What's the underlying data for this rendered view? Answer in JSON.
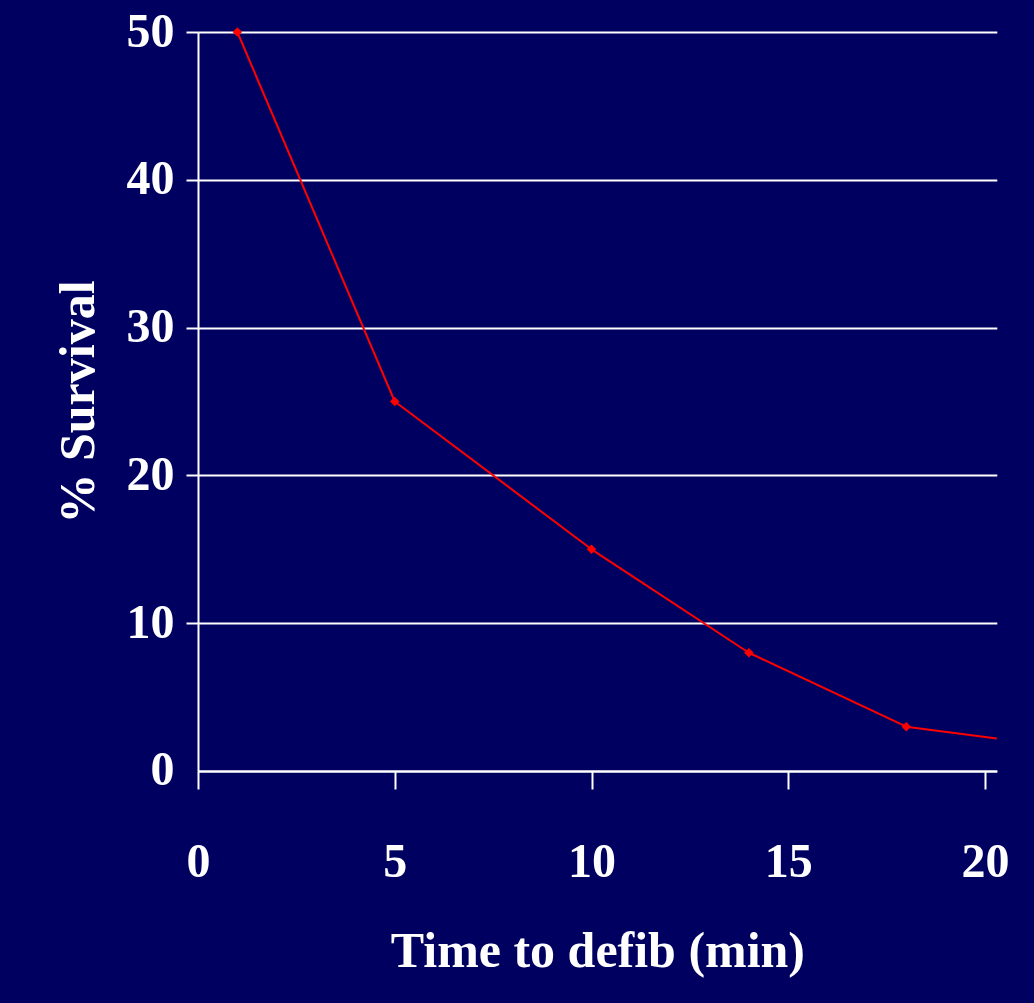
{
  "chart_data": {
    "type": "line",
    "xlabel": "Time to defib (min)",
    "ylabel": "% Survival",
    "series": [
      {
        "color": "#ff0000",
        "x": [
          1,
          5,
          10,
          14,
          18
        ],
        "values": [
          50,
          25,
          15,
          8,
          3
        ]
      },
      {
        "color": "#ff0000",
        "x": [
          18,
          20.3
        ],
        "values": [
          3,
          2.2
        ],
        "marker": "none"
      }
    ],
    "xlim": [
      0,
      20.3
    ],
    "xticks": [
      0,
      5,
      10,
      15,
      20
    ],
    "ylim": [
      0,
      50
    ],
    "yticks": [
      0,
      10,
      20,
      30,
      40,
      50
    ],
    "grid": "y",
    "legend": false,
    "marker": "diamond",
    "line_style": "solid"
  }
}
